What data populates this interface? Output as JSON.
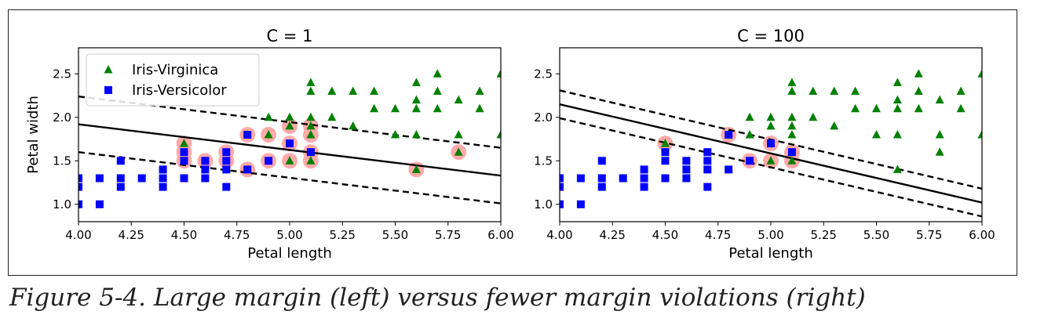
{
  "caption": "Figure 5-4. Large margin (left) versus fewer margin violations (right)",
  "colors": {
    "virginica": "#008000",
    "versicolor": "#0000ff",
    "support_vector": "#ffaaaa",
    "line": "#000000"
  },
  "chart_data": [
    {
      "type": "scatter",
      "title": "C = 1",
      "xlabel": "Petal length",
      "ylabel": "Petal width",
      "xlim": [
        4.0,
        6.0
      ],
      "ylim": [
        0.8,
        2.8
      ],
      "xticks": [
        "4.00",
        "4.25",
        "4.50",
        "4.75",
        "5.00",
        "5.25",
        "5.50",
        "5.75",
        "6.00"
      ],
      "yticks": [
        "1.0",
        "1.5",
        "2.0",
        "2.5"
      ],
      "legend": {
        "position": "top-left",
        "entries": [
          "Iris-Virginica",
          "Iris-Versicolor"
        ]
      },
      "decision_boundary": {
        "x": [
          4.0,
          6.0
        ],
        "y": [
          1.92,
          1.33
        ]
      },
      "margin_upper": {
        "x": [
          4.0,
          6.0
        ],
        "y": [
          2.24,
          1.65
        ]
      },
      "margin_lower": {
        "x": [
          4.0,
          6.0
        ],
        "y": [
          1.6,
          1.01
        ]
      },
      "support_vectors": [
        [
          4.5,
          1.7
        ],
        [
          4.5,
          1.6
        ],
        [
          4.5,
          1.5
        ],
        [
          4.6,
          1.5
        ],
        [
          4.7,
          1.6
        ],
        [
          4.7,
          1.5
        ],
        [
          4.8,
          1.8
        ],
        [
          4.8,
          1.4
        ],
        [
          4.9,
          1.8
        ],
        [
          4.9,
          1.5
        ],
        [
          5.0,
          1.9
        ],
        [
          5.0,
          1.7
        ],
        [
          5.0,
          1.5
        ],
        [
          5.1,
          1.9
        ],
        [
          5.1,
          1.8
        ],
        [
          5.1,
          1.6
        ],
        [
          5.1,
          1.5
        ],
        [
          5.6,
          1.4
        ],
        [
          5.8,
          1.6
        ]
      ]
    },
    {
      "type": "scatter",
      "title": "C = 100",
      "xlabel": "Petal length",
      "ylabel": "",
      "xlim": [
        4.0,
        6.0
      ],
      "ylim": [
        0.8,
        2.8
      ],
      "xticks": [
        "4.00",
        "4.25",
        "4.50",
        "4.75",
        "5.00",
        "5.25",
        "5.50",
        "5.75",
        "6.00"
      ],
      "yticks": [
        "1.0",
        "1.5",
        "2.0",
        "2.5"
      ],
      "decision_boundary": {
        "x": [
          4.0,
          6.0
        ],
        "y": [
          2.15,
          1.02
        ]
      },
      "margin_upper": {
        "x": [
          4.0,
          6.0
        ],
        "y": [
          2.31,
          1.18
        ]
      },
      "margin_lower": {
        "x": [
          4.0,
          6.0
        ],
        "y": [
          1.99,
          0.86
        ]
      },
      "support_vectors": [
        [
          4.5,
          1.7
        ],
        [
          4.8,
          1.8
        ],
        [
          4.9,
          1.5
        ],
        [
          5.0,
          1.7
        ],
        [
          5.0,
          1.5
        ],
        [
          5.1,
          1.6
        ],
        [
          5.1,
          1.5
        ]
      ]
    }
  ],
  "series": {
    "virginica": {
      "name": "Iris-Virginica",
      "points": [
        [
          4.5,
          1.7
        ],
        [
          4.8,
          1.8
        ],
        [
          4.9,
          1.8
        ],
        [
          4.9,
          2.0
        ],
        [
          5.0,
          1.5
        ],
        [
          5.0,
          2.0
        ],
        [
          5.0,
          1.9
        ],
        [
          5.1,
          2.4
        ],
        [
          5.1,
          2.3
        ],
        [
          5.1,
          2.0
        ],
        [
          5.1,
          1.9
        ],
        [
          5.1,
          1.8
        ],
        [
          5.1,
          1.5
        ],
        [
          5.2,
          2.3
        ],
        [
          5.2,
          2.0
        ],
        [
          5.3,
          2.3
        ],
        [
          5.3,
          1.9
        ],
        [
          5.4,
          2.3
        ],
        [
          5.4,
          2.1
        ],
        [
          5.5,
          2.1
        ],
        [
          5.5,
          1.8
        ],
        [
          5.6,
          2.4
        ],
        [
          5.6,
          2.2
        ],
        [
          5.6,
          2.1
        ],
        [
          5.6,
          1.8
        ],
        [
          5.6,
          1.4
        ],
        [
          5.7,
          2.5
        ],
        [
          5.7,
          2.3
        ],
        [
          5.7,
          2.1
        ],
        [
          5.8,
          2.2
        ],
        [
          5.8,
          1.8
        ],
        [
          5.8,
          1.6
        ],
        [
          5.9,
          2.3
        ],
        [
          5.9,
          2.1
        ],
        [
          6.0,
          2.5
        ],
        [
          6.0,
          1.8
        ]
      ]
    },
    "versicolor": {
      "name": "Iris-Versicolor",
      "points": [
        [
          4.0,
          1.3
        ],
        [
          4.0,
          1.2
        ],
        [
          4.0,
          1.0
        ],
        [
          4.1,
          1.3
        ],
        [
          4.1,
          1.0
        ],
        [
          4.2,
          1.5
        ],
        [
          4.2,
          1.3
        ],
        [
          4.2,
          1.2
        ],
        [
          4.3,
          1.3
        ],
        [
          4.4,
          1.4
        ],
        [
          4.4,
          1.3
        ],
        [
          4.4,
          1.2
        ],
        [
          4.5,
          1.6
        ],
        [
          4.5,
          1.5
        ],
        [
          4.5,
          1.3
        ],
        [
          4.6,
          1.5
        ],
        [
          4.6,
          1.4
        ],
        [
          4.6,
          1.3
        ],
        [
          4.7,
          1.6
        ],
        [
          4.7,
          1.5
        ],
        [
          4.7,
          1.4
        ],
        [
          4.7,
          1.2
        ],
        [
          4.8,
          1.8
        ],
        [
          4.8,
          1.4
        ],
        [
          4.9,
          1.5
        ],
        [
          5.0,
          1.7
        ],
        [
          5.1,
          1.6
        ]
      ]
    }
  }
}
